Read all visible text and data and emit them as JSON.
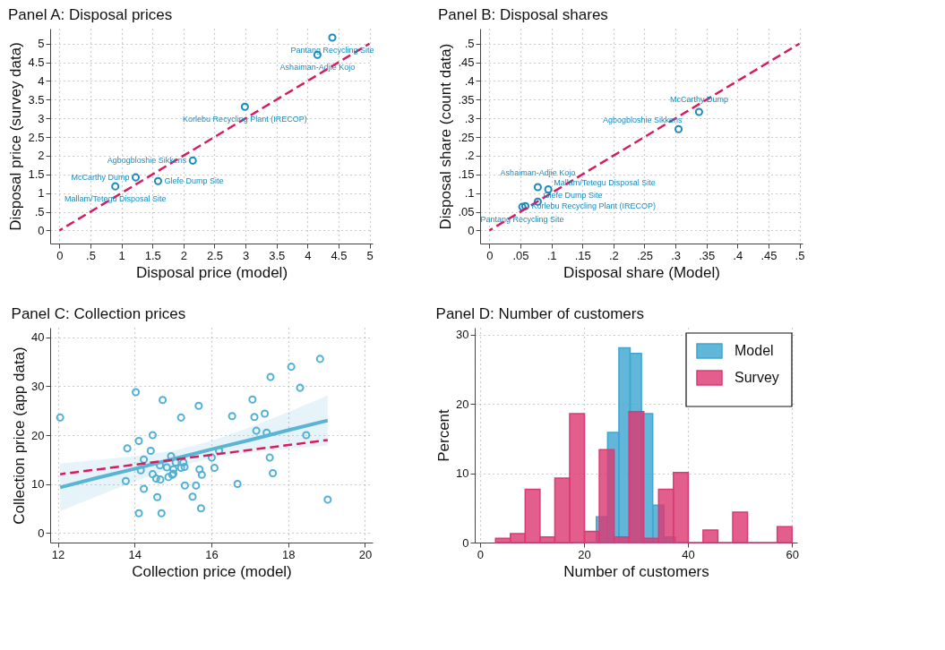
{
  "chart_data": [
    {
      "type": "scatter",
      "title": "Panel A: Disposal prices",
      "xlabel": "Disposal price (model)",
      "ylabel": "Disposal price (survey data)",
      "xlim": [
        -0.15,
        5.05
      ],
      "ylim": [
        -0.35,
        5.4
      ],
      "xticks": [
        0,
        {
          "value": 0.5,
          "label": ".5"
        },
        1,
        1.5,
        2,
        2.5,
        3,
        3.5,
        4,
        4.5,
        5
      ],
      "yticks": [
        0,
        {
          "value": 0.5,
          "label": ".5"
        },
        1,
        1.5,
        2,
        2.5,
        3,
        3.5,
        4,
        4.5,
        5
      ],
      "grid": true,
      "series": [
        {
          "type": "scatter",
          "marker": "circle",
          "color": "#1a8bbf",
          "x": [
            4.4,
            4.16,
            2.99,
            2.15,
            1.23,
            1.59,
            0.9
          ],
          "values": [
            5.16,
            4.7,
            3.31,
            1.87,
            1.42,
            1.32,
            1.18
          ]
        },
        {
          "type": "line",
          "color": "#d81b60",
          "line_style": "dashed",
          "x": [
            0,
            5
          ],
          "values": [
            0,
            5
          ]
        }
      ],
      "annotations": [
        {
          "text": "Pantang Recycling Site",
          "x": 4.4,
          "y": 5.16
        },
        {
          "text": "Ashaiman-Adjie Kojo",
          "x": 4.16,
          "y": 4.7
        },
        {
          "text": "Korlebu Recycling Plant (IRECOP)",
          "x": 2.99,
          "y": 3.31
        },
        {
          "text": "Agbogbloshie Sikkens",
          "x": 2.15,
          "y": 1.87
        },
        {
          "text": "McCarthy Dump",
          "x": 1.23,
          "y": 1.42
        },
        {
          "text": "Glefe Dump Site",
          "x": 1.59,
          "y": 1.32
        },
        {
          "text": "Mallam/Tetegu Disposal Site",
          "x": 0.9,
          "y": 1.18
        }
      ]
    },
    {
      "type": "scatter",
      "title": "Panel B: Disposal shares",
      "xlabel": "Disposal share (Model)",
      "ylabel": "Disposal share (count data)",
      "xlim": [
        -0.015,
        0.505
      ],
      "ylim": [
        -0.035,
        0.54
      ],
      "xticks": [
        0,
        {
          "value": 0.05,
          "label": ".05"
        },
        {
          "value": 0.1,
          "label": ".1"
        },
        {
          "value": 0.15,
          "label": ".15"
        },
        {
          "value": 0.2,
          "label": ".2"
        },
        {
          "value": 0.25,
          "label": ".25"
        },
        {
          "value": 0.3,
          "label": ".3"
        },
        {
          "value": 0.35,
          "label": ".35"
        },
        {
          "value": 0.4,
          "label": ".4"
        },
        {
          "value": 0.45,
          "label": ".45"
        },
        {
          "value": 0.5,
          "label": ".5"
        }
      ],
      "yticks": [
        0,
        {
          "value": 0.05,
          "label": ".05"
        },
        {
          "value": 0.1,
          "label": ".1"
        },
        {
          "value": 0.15,
          "label": ".15"
        },
        {
          "value": 0.2,
          "label": ".2"
        },
        {
          "value": 0.25,
          "label": ".25"
        },
        {
          "value": 0.3,
          "label": ".3"
        },
        {
          "value": 0.35,
          "label": ".35"
        },
        {
          "value": 0.4,
          "label": ".4"
        },
        {
          "value": 0.45,
          "label": ".45"
        },
        {
          "value": 0.5,
          "label": ".5"
        }
      ],
      "grid": true,
      "series": [
        {
          "type": "scatter",
          "marker": "circle",
          "color": "#1a8bbf",
          "x": [
            0.338,
            0.305,
            0.078,
            0.095,
            0.053,
            0.078,
            0.058
          ],
          "values": [
            0.317,
            0.271,
            0.116,
            0.11,
            0.063,
            0.077,
            0.065
          ]
        },
        {
          "type": "line",
          "color": "#d81b60",
          "line_style": "dashed",
          "x": [
            0,
            0.5
          ],
          "values": [
            0,
            0.5
          ]
        }
      ],
      "annotations": [
        {
          "text": "McCarthy Dump",
          "x": 0.338,
          "y": 0.317
        },
        {
          "text": "Agbogbloshie Sikkens",
          "x": 0.305,
          "y": 0.271
        },
        {
          "text": "Ashaiman-Adjie Kojo",
          "x": 0.078,
          "y": 0.116
        },
        {
          "text": "Mallam/Tetegu Disposal Site",
          "x": 0.095,
          "y": 0.11
        },
        {
          "text": "Pantang Recycling Site",
          "x": 0.053,
          "y": 0.063
        },
        {
          "text": "Glefe Dump Site",
          "x": 0.078,
          "y": 0.077
        },
        {
          "text": "Korlebu Recycling Plant (IRECOP)",
          "x": 0.058,
          "y": 0.065
        }
      ]
    },
    {
      "type": "scatter",
      "title": "Panel C: Collection prices",
      "xlabel": "Collection price (model)",
      "ylabel": "Collection price (app data)",
      "xlim": [
        11.8,
        20.2
      ],
      "ylim": [
        -2,
        42
      ],
      "xticks": [
        12,
        14,
        16,
        18,
        20
      ],
      "yticks": [
        0,
        10,
        20,
        30,
        40
      ],
      "grid": true,
      "series": [
        {
          "type": "scatter",
          "marker": "circle",
          "color": "#4fb0d8",
          "x": [
            12.06,
            14.03,
            14.73,
            15.67,
            15.21,
            14.47,
            14.11,
            13.81,
            14.42,
            14.24,
            14.16,
            14.47,
            14.66,
            14.56,
            14.67,
            14.95,
            15.07,
            15.01,
            14.84,
            14.88,
            14.98,
            15.01,
            15.21,
            15.27,
            15.3,
            15.31,
            15.6,
            15.69,
            15.75,
            15.51,
            15.73,
            14.59,
            14.24,
            14.11,
            14.7,
            13.77,
            16.01,
            16.2,
            16.08,
            16.54,
            16.68,
            17.07,
            17.12,
            17.17,
            17.39,
            17.44,
            17.52,
            17.6,
            17.54,
            18.08,
            18.31,
            18.47,
            18.83,
            19.03
          ],
          "values": [
            23.6,
            28.8,
            27.2,
            26.0,
            23.6,
            20.0,
            18.8,
            17.3,
            16.8,
            15.0,
            12.8,
            12.0,
            13.8,
            11.1,
            10.9,
            15.7,
            14.4,
            13.0,
            13.4,
            11.4,
            11.9,
            12.1,
            13.3,
            14.4,
            13.5,
            9.7,
            9.7,
            13.0,
            11.9,
            7.4,
            5.0,
            7.3,
            9.0,
            4.0,
            4.0,
            10.6,
            15.4,
            16.8,
            13.3,
            23.9,
            10.0,
            27.3,
            23.7,
            20.9,
            24.4,
            20.5,
            15.4,
            12.2,
            31.9,
            34.0,
            29.7,
            20.0,
            35.6,
            6.8
          ]
        },
        {
          "type": "line",
          "color": "#5ab4d6",
          "line_style": "solid",
          "x": [
            12.06,
            13,
            14,
            15,
            16,
            17,
            18,
            19.03
          ],
          "values": [
            9.3,
            11.2,
            13.1,
            15.1,
            17.1,
            19.0,
            21.0,
            23.0
          ],
          "lower": [
            4.4,
            7.4,
            10.5,
            13.3,
            15.3,
            16.4,
            17.2,
            17.9
          ],
          "upper": [
            14.2,
            14.9,
            15.7,
            16.8,
            18.8,
            21.6,
            24.7,
            28.1
          ]
        },
        {
          "type": "line",
          "color": "#d81b60",
          "line_style": "dashed",
          "x": [
            12.06,
            19.03
          ],
          "values": [
            12.0,
            19.0
          ]
        }
      ]
    },
    {
      "type": "histogram",
      "title": "Panel D: Number of customers",
      "xlabel": "Number of customers",
      "ylabel": "Percent",
      "xlim": [
        -1,
        61
      ],
      "ylim": [
        0,
        31
      ],
      "xticks": [
        0,
        20,
        40,
        60
      ],
      "yticks": [
        0,
        10,
        20,
        30
      ],
      "grid": true,
      "legend": "top right",
      "bins": [
        3,
        5.85,
        8.7,
        11.55,
        14.4,
        17.25,
        20.1,
        22.95,
        25.8,
        28.65,
        31.5,
        34.35,
        37.2,
        40.05,
        42.9,
        45.75,
        48.6,
        51.45,
        54.3,
        57.15,
        60
      ],
      "series": [
        {
          "name": "Model",
          "color": "#3ea6d1",
          "bins": [
            18.05,
            20.22,
            22.38,
            24.55,
            26.72,
            28.88,
            31.05,
            33.22,
            35.38,
            37.55,
            39.72
          ],
          "values": [
            0,
            0,
            3.7,
            15.9,
            28.1,
            27.3,
            18.6,
            5.4,
            0.8,
            0
          ]
        },
        {
          "name": "Survey",
          "color": "#db3b74",
          "values": [
            0.6,
            1.3,
            7.7,
            0.8,
            9.3,
            18.6,
            1.6,
            13.4,
            0.8,
            18.9,
            0.6,
            7.7,
            10.1,
            0,
            1.8,
            0,
            4.4,
            0,
            0,
            2.3
          ]
        }
      ]
    }
  ]
}
